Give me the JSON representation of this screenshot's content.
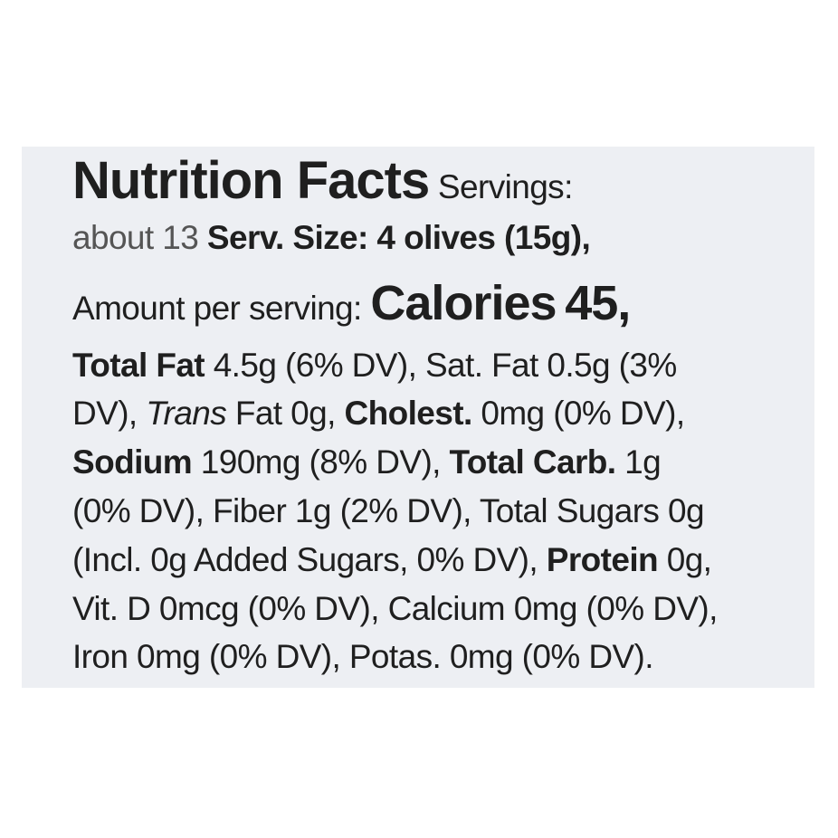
{
  "header": {
    "title": "Nutrition Facts",
    "servings_label": "Servings:",
    "servings_value": "about 13",
    "serving_size_label": "Serv. Size:",
    "serving_size_value": "4 olives (15g),"
  },
  "calories": {
    "amount_label": "Amount per serving:",
    "label": "Calories",
    "value": "45,"
  },
  "nutrients": {
    "total_fat_label": "Total Fat",
    "total_fat_value": "4.5g (6% DV), Sat. Fat 0.5g (3%",
    "line3_start": "DV),",
    "trans_label": "Trans",
    "trans_value": "Fat 0g,",
    "cholest_label": "Cholest.",
    "cholest_value": "0mg (0% DV),",
    "sodium_label": "Sodium",
    "sodium_value": "190mg (8% DV),",
    "carb_label": "Total Carb.",
    "carb_value": "1g",
    "line5": "(0% DV), Fiber 1g (2% DV), Total Sugars 0g",
    "line6_start": "(Incl. 0g Added Sugars, 0% DV),",
    "protein_label": "Protein",
    "protein_value": "0g,",
    "line7": "Vit. D 0mcg (0% DV), Calcium 0mg (0% DV),",
    "line8": "Iron 0mg (0% DV), Potas. 0mg (0% DV)."
  }
}
